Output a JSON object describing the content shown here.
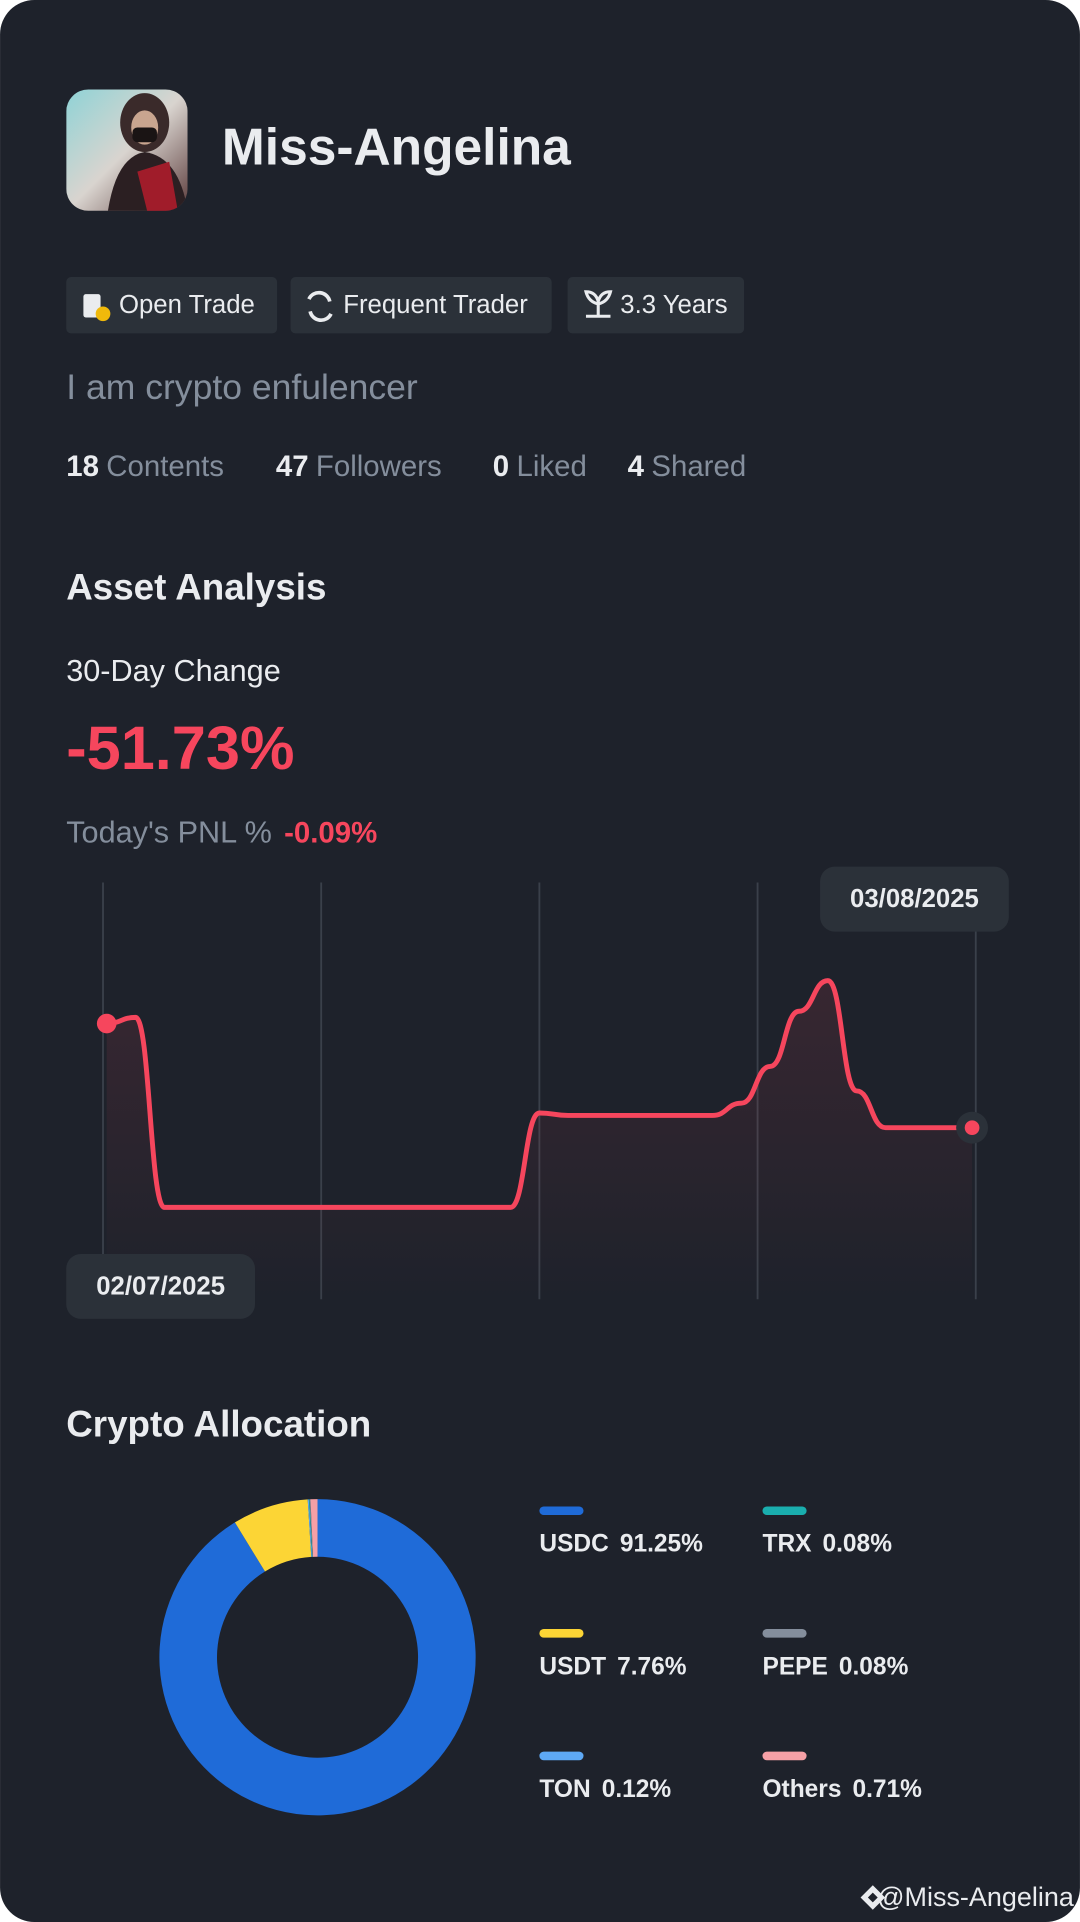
{
  "profile": {
    "name": "Miss-Angelina",
    "tags": [
      "Open Trade",
      "Frequent Trader",
      "3.3 Years"
    ],
    "bio": "I am crypto enfulencer",
    "stats": [
      {
        "value": 18,
        "label": "Contents"
      },
      {
        "value": 47,
        "label": "Followers"
      },
      {
        "value": 0,
        "label": "Liked"
      },
      {
        "value": 4,
        "label": "Shared"
      }
    ]
  },
  "asset_analysis": {
    "title": "Asset Analysis",
    "change_label": "30-Day Change",
    "change": "-51.73%",
    "pnl_label": "Today's PNL %",
    "pnl": "-0.09%"
  },
  "chart_data": [
    {
      "type": "line",
      "x": [
        "02/07/2025",
        null,
        null,
        null,
        null,
        null,
        null,
        null,
        null,
        null,
        null,
        null,
        null,
        null,
        null,
        null,
        null,
        null,
        null,
        null,
        null,
        null,
        null,
        null,
        null,
        null,
        null,
        null,
        null,
        null,
        "03/08/2025"
      ],
      "values": [
        82.5,
        85,
        7.5,
        7.5,
        7.5,
        7.5,
        7.5,
        7.5,
        7.5,
        7.5,
        7.5,
        7.5,
        7.5,
        7.5,
        7.5,
        46,
        45,
        45,
        45,
        45,
        45,
        45,
        50,
        65,
        87.5,
        100,
        55,
        40,
        40,
        40,
        40
      ],
      "color": "#f6465d",
      "grid": true
    },
    {
      "type": "pie",
      "donut": true,
      "title": "Crypto Allocation",
      "categories": [
        "USDC",
        "USDT",
        "TON",
        "TRX",
        "PEPE",
        "Others"
      ],
      "values": [
        91.25,
        7.76,
        0.12,
        0.08,
        0.08,
        0.71
      ],
      "value_labels": [
        "91.25%",
        "7.76%",
        "0.12%",
        "0.08%",
        "0.08%",
        "0.71%"
      ],
      "colors": [
        "#1f6bd8",
        "#fcd535",
        "#5ea9f5",
        "#1aaeae",
        "#848e9c",
        "#f6a0a6"
      ]
    }
  ],
  "footer": "@Miss-Angelina"
}
